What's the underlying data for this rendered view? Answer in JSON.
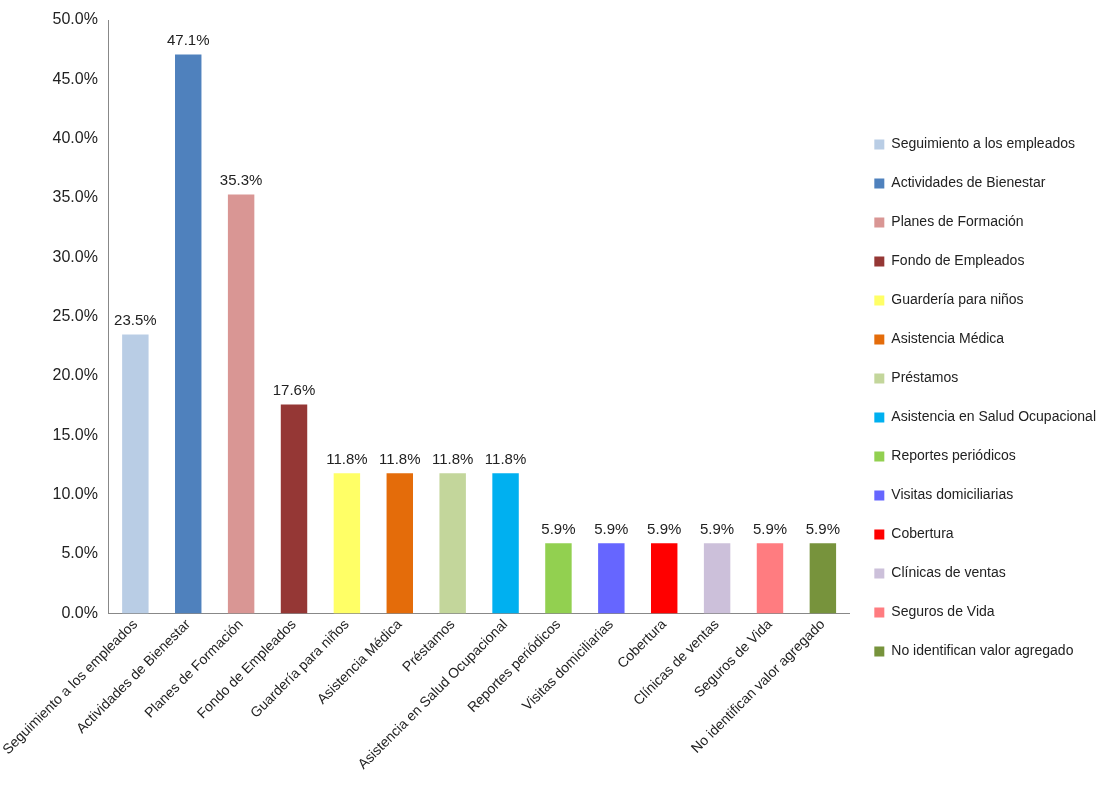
{
  "chart_data": {
    "type": "bar",
    "categories": [
      "Seguimiento a los empleados",
      "Actividades de Bienestar",
      "Planes de Formación",
      "Fondo de Empleados",
      "Guardería para niños",
      "Asistencia Médica",
      "Préstamos",
      "Asistencia en Salud Ocupacional",
      "Reportes periódicos",
      "Visitas domiciliarias",
      "Cobertura",
      "Clínicas de ventas",
      "Seguros de Vida",
      "No identifican valor agregado"
    ],
    "series": [
      {
        "name": "Seguimiento a los empleados",
        "color": "#b9cde5",
        "values": [
          23.5,
          null,
          null,
          null,
          null,
          null,
          null,
          null,
          null,
          null,
          null,
          null,
          null,
          null
        ],
        "value_labels": [
          "23.5%",
          null,
          null,
          null,
          null,
          null,
          null,
          null,
          null,
          null,
          null,
          null,
          null,
          null
        ]
      },
      {
        "name": "Actividades de Bienestar",
        "color": "#4f81bd",
        "values": [
          null,
          47.1,
          null,
          null,
          null,
          null,
          null,
          null,
          null,
          null,
          null,
          null,
          null,
          null
        ],
        "value_labels": [
          null,
          "47.1%",
          null,
          null,
          null,
          null,
          null,
          null,
          null,
          null,
          null,
          null,
          null,
          null
        ]
      },
      {
        "name": "Planes de Formación",
        "color": "#d99694",
        "values": [
          null,
          null,
          35.3,
          null,
          null,
          null,
          null,
          null,
          null,
          null,
          null,
          null,
          null,
          null
        ],
        "value_labels": [
          null,
          null,
          "35.3%",
          null,
          null,
          null,
          null,
          null,
          null,
          null,
          null,
          null,
          null,
          null
        ]
      },
      {
        "name": "Fondo de Empleados",
        "color": "#953735",
        "values": [
          null,
          null,
          null,
          17.6,
          null,
          null,
          null,
          null,
          null,
          null,
          null,
          null,
          null,
          null
        ],
        "value_labels": [
          null,
          null,
          null,
          "17.6%",
          null,
          null,
          null,
          null,
          null,
          null,
          null,
          null,
          null,
          null
        ]
      },
      {
        "name": "Guardería para niños",
        "color": "#ffff66",
        "values": [
          null,
          null,
          null,
          null,
          11.8,
          null,
          null,
          null,
          null,
          null,
          null,
          null,
          null,
          null
        ],
        "value_labels": [
          null,
          null,
          null,
          null,
          "11.8%",
          null,
          null,
          null,
          null,
          null,
          null,
          null,
          null,
          null
        ]
      },
      {
        "name": "Asistencia Médica",
        "color": "#e46c0a",
        "values": [
          null,
          null,
          null,
          null,
          null,
          11.8,
          null,
          null,
          null,
          null,
          null,
          null,
          null,
          null
        ],
        "value_labels": [
          null,
          null,
          null,
          null,
          null,
          "11.8%",
          null,
          null,
          null,
          null,
          null,
          null,
          null,
          null
        ]
      },
      {
        "name": "Préstamos",
        "color": "#c3d69b",
        "values": [
          null,
          null,
          null,
          null,
          null,
          null,
          11.8,
          null,
          null,
          null,
          null,
          null,
          null,
          null
        ],
        "value_labels": [
          null,
          null,
          null,
          null,
          null,
          null,
          "11.8%",
          null,
          null,
          null,
          null,
          null,
          null,
          null
        ]
      },
      {
        "name": "Asistencia en Salud Ocupacional",
        "color": "#00b0f0",
        "values": [
          null,
          null,
          null,
          null,
          null,
          null,
          null,
          11.8,
          null,
          null,
          null,
          null,
          null,
          null
        ],
        "value_labels": [
          null,
          null,
          null,
          null,
          null,
          null,
          null,
          "11.8%",
          null,
          null,
          null,
          null,
          null,
          null
        ]
      },
      {
        "name": "Reportes periódicos",
        "color": "#92d050",
        "values": [
          null,
          null,
          null,
          null,
          null,
          null,
          null,
          null,
          5.9,
          null,
          null,
          null,
          null,
          null
        ],
        "value_labels": [
          null,
          null,
          null,
          null,
          null,
          null,
          null,
          null,
          "5.9%",
          null,
          null,
          null,
          null,
          null
        ]
      },
      {
        "name": "Visitas domiciliarias",
        "color": "#6666ff",
        "values": [
          null,
          null,
          null,
          null,
          null,
          null,
          null,
          null,
          null,
          5.9,
          null,
          null,
          null,
          null
        ],
        "value_labels": [
          null,
          null,
          null,
          null,
          null,
          null,
          null,
          null,
          null,
          "5.9%",
          null,
          null,
          null,
          null
        ]
      },
      {
        "name": "Cobertura",
        "color": "#ff0000",
        "values": [
          null,
          null,
          null,
          null,
          null,
          null,
          null,
          null,
          null,
          null,
          5.9,
          null,
          null,
          null
        ],
        "value_labels": [
          null,
          null,
          null,
          null,
          null,
          null,
          null,
          null,
          null,
          null,
          "5.9%",
          null,
          null,
          null
        ]
      },
      {
        "name": "Clínicas de ventas",
        "color": "#ccc0da",
        "values": [
          null,
          null,
          null,
          null,
          null,
          null,
          null,
          null,
          null,
          null,
          null,
          5.9,
          null,
          null
        ],
        "value_labels": [
          null,
          null,
          null,
          null,
          null,
          null,
          null,
          null,
          null,
          null,
          null,
          "5.9%",
          null,
          null
        ]
      },
      {
        "name": "Seguros de Vida",
        "color": "#ff7c80",
        "values": [
          null,
          null,
          null,
          null,
          null,
          null,
          null,
          null,
          null,
          null,
          null,
          null,
          5.9,
          null
        ],
        "value_labels": [
          null,
          null,
          null,
          null,
          null,
          null,
          null,
          null,
          null,
          null,
          null,
          null,
          "5.9%",
          null
        ]
      },
      {
        "name": "No identifican valor agregado",
        "color": "#77933c",
        "values": [
          null,
          null,
          null,
          null,
          null,
          null,
          null,
          null,
          null,
          null,
          null,
          null,
          null,
          5.9
        ],
        "value_labels": [
          null,
          null,
          null,
          null,
          null,
          null,
          null,
          null,
          null,
          null,
          null,
          null,
          null,
          "5.9%"
        ]
      }
    ],
    "ylim": [
      0,
      50
    ],
    "yticks": [
      {
        "value": 0,
        "label": "0.0%"
      },
      {
        "value": 5,
        "label": "5.0%"
      },
      {
        "value": 10,
        "label": "10.0%"
      },
      {
        "value": 15,
        "label": "15.0%"
      },
      {
        "value": 20,
        "label": "20.0%"
      },
      {
        "value": 25,
        "label": "25.0%"
      },
      {
        "value": 30,
        "label": "30.0%"
      },
      {
        "value": 35,
        "label": "35.0%"
      },
      {
        "value": 40,
        "label": "40.0%"
      },
      {
        "value": 45,
        "label": "45.0%"
      },
      {
        "value": 50,
        "label": "50.0%"
      }
    ],
    "grid": false,
    "legend": "right"
  }
}
